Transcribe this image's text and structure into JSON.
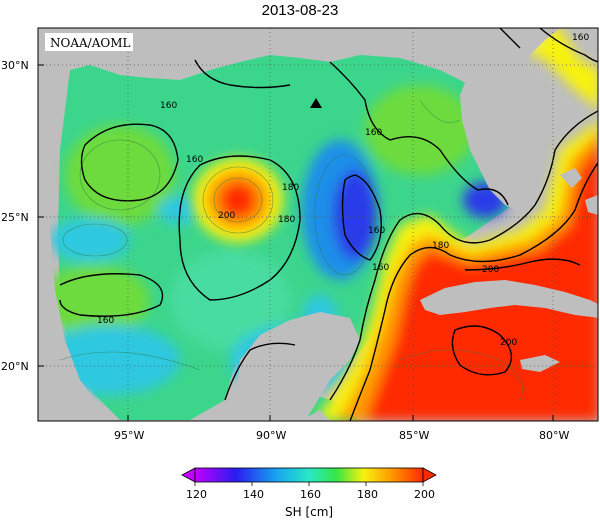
{
  "title": "2013-08-23",
  "source": "NOAA/AOML",
  "colorbar": {
    "title": "SH [cm]",
    "ticks": [
      "120",
      "140",
      "160",
      "180",
      "200"
    ],
    "stops": [
      "#c100ff",
      "#2a1cf0",
      "#18a6f0",
      "#28e8c8",
      "#36e646",
      "#f7f210",
      "#ff9a00",
      "#ff2a00"
    ]
  },
  "axes": {
    "lon_ticks": [
      "95°W",
      "90°W",
      "85°W",
      "80°W"
    ],
    "lat_ticks": [
      "30°N",
      "25°N",
      "20°N"
    ]
  },
  "contour_labels": [
    "160",
    "160",
    "160",
    "160",
    "160",
    "160",
    "180",
    "180",
    "180",
    "200",
    "200",
    "200",
    "160"
  ],
  "colors": {
    "land": "#bebebe",
    "ocean_base": "#3cd58c"
  }
}
